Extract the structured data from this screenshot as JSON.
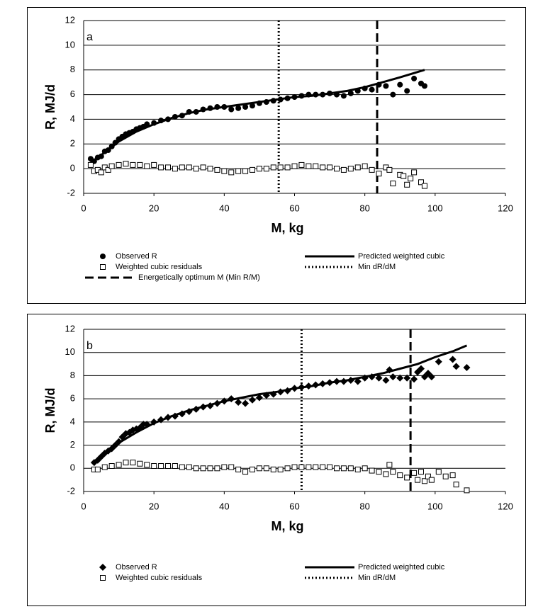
{
  "chart_data": [
    {
      "type": "scatter",
      "annotation": "a",
      "x_label": "M, kg",
      "y_label": "R, MJ/d",
      "xlim": [
        0,
        120
      ],
      "xticks": [
        0,
        20,
        40,
        60,
        80,
        100,
        120
      ],
      "ylim": [
        -2,
        12
      ],
      "yticks": [
        -2,
        0,
        2,
        4,
        6,
        8,
        10,
        12
      ],
      "grid": true,
      "series": [
        {
          "name": "Observed R",
          "marker": "circle",
          "color": "#000000",
          "x": [
            2,
            3,
            4,
            5,
            6,
            7,
            8,
            9,
            10,
            11,
            12,
            13,
            14,
            15,
            16,
            17,
            18,
            20,
            22,
            24,
            26,
            28,
            30,
            32,
            34,
            36,
            38,
            40,
            42,
            44,
            46,
            48,
            50,
            52,
            54,
            56,
            58,
            60,
            62,
            64,
            66,
            68,
            70,
            72,
            74,
            76,
            78,
            80,
            82,
            84,
            86,
            88,
            90,
            92,
            94,
            96,
            97
          ],
          "values": [
            0.8,
            0.6,
            0.9,
            1.0,
            1.4,
            1.5,
            1.8,
            2.1,
            2.4,
            2.6,
            2.8,
            2.9,
            3.0,
            3.2,
            3.3,
            3.4,
            3.6,
            3.7,
            3.9,
            4.0,
            4.2,
            4.3,
            4.6,
            4.6,
            4.8,
            4.9,
            5.0,
            5.0,
            4.8,
            4.9,
            5.0,
            5.1,
            5.3,
            5.4,
            5.5,
            5.6,
            5.7,
            5.8,
            5.9,
            6.0,
            6.0,
            6.0,
            6.1,
            6.0,
            5.9,
            6.1,
            6.3,
            6.5,
            6.4,
            6.8,
            6.7,
            6.0,
            6.8,
            6.3,
            7.3,
            6.9,
            6.7
          ]
        },
        {
          "name": "Predicted weighted cubic",
          "marker": "line",
          "color": "#000000",
          "x": [
            2,
            5,
            10,
            15,
            20,
            25,
            30,
            35,
            40,
            45,
            50,
            55,
            60,
            65,
            70,
            75,
            80,
            85,
            90,
            97
          ],
          "values": [
            0.5,
            1.1,
            2.2,
            3.0,
            3.6,
            4.1,
            4.5,
            4.8,
            5.0,
            5.2,
            5.4,
            5.6,
            5.8,
            5.9,
            6.1,
            6.3,
            6.6,
            7.0,
            7.4,
            8.0
          ]
        },
        {
          "name": "Weighted cubic residuals",
          "marker": "square",
          "color": "#000000",
          "x": [
            2,
            3,
            4,
            5,
            6,
            7,
            8,
            10,
            12,
            14,
            16,
            18,
            20,
            22,
            24,
            26,
            28,
            30,
            32,
            34,
            36,
            38,
            40,
            42,
            44,
            46,
            48,
            50,
            52,
            54,
            56,
            58,
            60,
            62,
            64,
            66,
            68,
            70,
            72,
            74,
            76,
            78,
            80,
            82,
            84,
            86,
            87,
            88,
            90,
            91,
            92,
            93,
            94,
            96,
            97
          ],
          "values": [
            0.3,
            -0.2,
            -0.1,
            -0.3,
            0.1,
            -0.1,
            0.2,
            0.3,
            0.4,
            0.3,
            0.3,
            0.2,
            0.3,
            0.1,
            0.1,
            0.0,
            0.1,
            0.1,
            0.0,
            0.1,
            0.0,
            -0.1,
            -0.2,
            -0.3,
            -0.2,
            -0.2,
            -0.1,
            0.0,
            0.0,
            0.1,
            0.1,
            0.1,
            0.2,
            0.3,
            0.2,
            0.2,
            0.1,
            0.1,
            0.0,
            -0.1,
            0.0,
            0.1,
            0.2,
            -0.1,
            -0.4,
            0.1,
            -0.1,
            -1.2,
            -0.5,
            -0.6,
            -1.3,
            -0.8,
            -0.3,
            -1.1,
            -1.4
          ]
        }
      ],
      "vlines": [
        {
          "name": "Min dR/dM",
          "x": 55.5,
          "style": "dotted"
        },
        {
          "name": "Energetically optimum M (Min R/M)",
          "x": 83.5,
          "style": "dashed"
        }
      ]
    },
    {
      "type": "scatter",
      "annotation": "b",
      "x_label": "M, kg",
      "y_label": "R, MJ/d",
      "xlim": [
        0,
        120
      ],
      "xticks": [
        0,
        20,
        40,
        60,
        80,
        100,
        120
      ],
      "ylim": [
        -2,
        12
      ],
      "yticks": [
        -2,
        0,
        2,
        4,
        6,
        8,
        10,
        12
      ],
      "grid": true,
      "series": [
        {
          "name": "Observed R",
          "marker": "diamond",
          "color": "#000000",
          "x": [
            3,
            4,
            5,
            6,
            7,
            8,
            9,
            10,
            11,
            12,
            13,
            14,
            15,
            16,
            17,
            18,
            20,
            22,
            24,
            26,
            28,
            30,
            32,
            34,
            36,
            38,
            40,
            42,
            44,
            46,
            48,
            50,
            52,
            54,
            56,
            58,
            60,
            62,
            64,
            66,
            68,
            70,
            72,
            74,
            76,
            78,
            80,
            82,
            84,
            86,
            87,
            88,
            90,
            92,
            94,
            95,
            96,
            97,
            98,
            99,
            101,
            105,
            106,
            109
          ],
          "values": [
            0.5,
            0.7,
            1.0,
            1.3,
            1.5,
            1.7,
            2.0,
            2.3,
            2.7,
            3.0,
            3.1,
            3.3,
            3.4,
            3.5,
            3.8,
            3.8,
            4.0,
            4.2,
            4.4,
            4.5,
            4.7,
            4.9,
            5.1,
            5.3,
            5.4,
            5.6,
            5.8,
            6.0,
            5.7,
            5.6,
            5.9,
            6.1,
            6.3,
            6.4,
            6.6,
            6.7,
            6.9,
            7.0,
            7.1,
            7.2,
            7.3,
            7.4,
            7.5,
            7.5,
            7.6,
            7.5,
            7.8,
            7.9,
            7.8,
            7.6,
            8.5,
            7.9,
            7.8,
            7.8,
            7.7,
            8.3,
            8.6,
            7.9,
            8.2,
            7.9,
            9.2,
            9.4,
            8.8,
            8.7
          ]
        },
        {
          "name": "Predicted weighted cubic",
          "marker": "line",
          "color": "#000000",
          "x": [
            3,
            5,
            10,
            15,
            20,
            25,
            30,
            35,
            40,
            45,
            50,
            55,
            60,
            65,
            70,
            75,
            80,
            85,
            90,
            95,
            100,
            105,
            109
          ],
          "values": [
            0.4,
            1.0,
            2.2,
            3.1,
            3.9,
            4.5,
            5.0,
            5.4,
            5.8,
            6.1,
            6.4,
            6.6,
            6.9,
            7.1,
            7.4,
            7.6,
            7.9,
            8.2,
            8.6,
            9.0,
            9.6,
            10.1,
            10.6
          ]
        },
        {
          "name": "Weighted cubic residuals",
          "marker": "square",
          "color": "#000000",
          "x": [
            3,
            4,
            6,
            8,
            10,
            12,
            14,
            16,
            18,
            20,
            22,
            24,
            26,
            28,
            30,
            32,
            34,
            36,
            38,
            40,
            42,
            44,
            46,
            48,
            50,
            52,
            54,
            56,
            58,
            60,
            62,
            64,
            66,
            68,
            70,
            72,
            74,
            76,
            78,
            80,
            82,
            84,
            86,
            87,
            88,
            90,
            92,
            94,
            95,
            96,
            97,
            98,
            99,
            101,
            103,
            105,
            106,
            109
          ],
          "values": [
            -0.1,
            -0.1,
            0.1,
            0.2,
            0.3,
            0.5,
            0.5,
            0.4,
            0.3,
            0.2,
            0.2,
            0.2,
            0.2,
            0.1,
            0.1,
            0.0,
            0.0,
            0.0,
            0.0,
            0.1,
            0.1,
            -0.1,
            -0.3,
            -0.1,
            0.0,
            0.0,
            -0.1,
            -0.1,
            0.0,
            0.1,
            0.1,
            0.1,
            0.1,
            0.1,
            0.1,
            0.0,
            0.0,
            0.0,
            -0.1,
            0.0,
            -0.2,
            -0.3,
            -0.5,
            0.3,
            -0.3,
            -0.6,
            -0.8,
            -0.4,
            -1.0,
            -0.3,
            -1.1,
            -0.7,
            -1.0,
            -0.3,
            -0.7,
            -0.6,
            -1.4,
            -1.9
          ]
        }
      ],
      "vlines": [
        {
          "name": "Min dR/dM",
          "x": 62,
          "style": "dotted"
        },
        {
          "x": 93,
          "style": "dashed"
        }
      ]
    }
  ]
}
